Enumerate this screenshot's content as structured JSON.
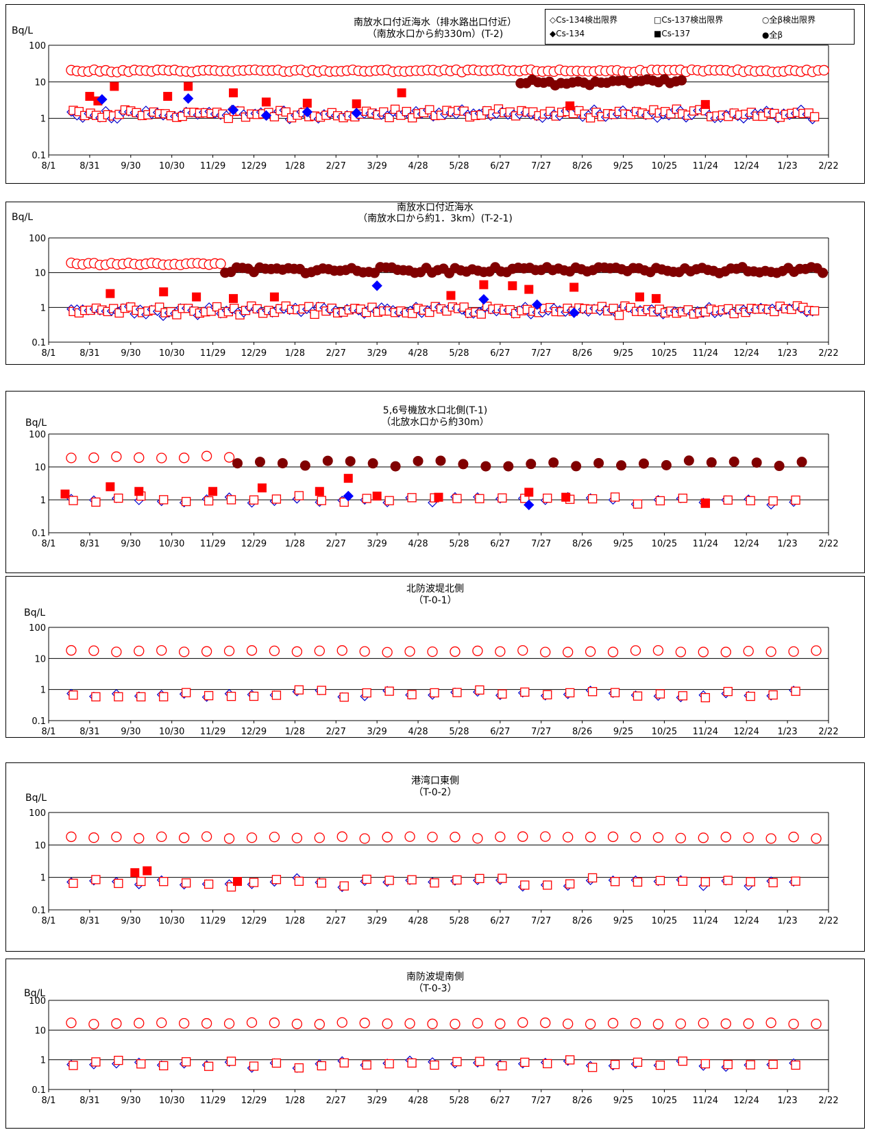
{
  "legend": {
    "items": [
      {
        "label": "◇Cs-134検出限界",
        "marker": "diamond-open",
        "color": "#0000cc"
      },
      {
        "label": "□Cs-137検出限界",
        "marker": "square-open",
        "color": "#ff0000"
      },
      {
        "label": "○全β検出限界",
        "marker": "circle-open",
        "color": "#ff0000"
      },
      {
        "label": "◆Cs-134",
        "marker": "diamond-filled",
        "color": "#0000ff"
      },
      {
        "label": "■Cs-137",
        "marker": "square-filled",
        "color": "#ff0000"
      },
      {
        "label": "●全β",
        "marker": "circle-filled",
        "color": "#800000"
      }
    ]
  },
  "chart_data": [
    {
      "type": "scatter",
      "title": [
        "南放水口付近海水（排水路出口付近）",
        "（南放水口から約330m）(T-2)"
      ],
      "ylabel": "Bq/L",
      "y_scale": "log",
      "ylim": [
        0.1,
        100
      ],
      "y_ticks": [
        "100",
        "10",
        "1",
        "0.1"
      ],
      "x_ticks": [
        "8/1",
        "8/31",
        "9/30",
        "10/30",
        "11/29",
        "12/29",
        "1/28",
        "2/27",
        "3/29",
        "4/28",
        "5/28",
        "6/27",
        "7/27",
        "8/26",
        "9/25",
        "10/25",
        "11/24",
        "12/24",
        "1/23",
        "2/22"
      ],
      "beta_dl_range": [
        20,
        0,
        19
      ],
      "beta_det_range": [
        10,
        11.5,
        15.5
      ],
      "cs_dl_level": 1.3,
      "cs_detected": [
        {
          "series": "Cs-137",
          "x": 1.0,
          "y": 4
        },
        {
          "series": "Cs-137",
          "x": 1.2,
          "y": 3
        },
        {
          "series": "Cs-137",
          "x": 1.6,
          "y": 7.5
        },
        {
          "series": "Cs-137",
          "x": 2.9,
          "y": 4
        },
        {
          "series": "Cs-137",
          "x": 3.4,
          "y": 7.5
        },
        {
          "series": "Cs-137",
          "x": 4.5,
          "y": 5
        },
        {
          "series": "Cs-137",
          "x": 5.3,
          "y": 2.8
        },
        {
          "series": "Cs-137",
          "x": 6.3,
          "y": 2.6
        },
        {
          "series": "Cs-137",
          "x": 7.5,
          "y": 2.5
        },
        {
          "series": "Cs-137",
          "x": 8.6,
          "y": 5
        },
        {
          "series": "Cs-137",
          "x": 12.7,
          "y": 2.2
        },
        {
          "series": "Cs-137",
          "x": 16.0,
          "y": 2.4
        },
        {
          "series": "Cs-134",
          "x": 1.3,
          "y": 3.3
        },
        {
          "series": "Cs-134",
          "x": 3.4,
          "y": 3.5
        },
        {
          "series": "Cs-134",
          "x": 4.5,
          "y": 1.7
        },
        {
          "series": "Cs-134",
          "x": 5.3,
          "y": 1.2
        },
        {
          "series": "Cs-134",
          "x": 6.3,
          "y": 1.5
        },
        {
          "series": "Cs-134",
          "x": 7.5,
          "y": 1.4
        }
      ]
    },
    {
      "type": "scatter",
      "title": [
        "南放水口付近海水",
        "（南放水口から約1．3km）(T-2-1)"
      ],
      "ylabel": "Bq/L",
      "y_scale": "log",
      "ylim": [
        0.1,
        100
      ],
      "y_ticks": [
        "100",
        "10",
        "1",
        "0.1"
      ],
      "x_ticks": [
        "8/1",
        "8/31",
        "9/30",
        "10/30",
        "11/29",
        "12/29",
        "1/28",
        "2/27",
        "3/29",
        "4/28",
        "5/28",
        "6/27",
        "7/27",
        "8/26",
        "9/25",
        "10/25",
        "11/24",
        "12/24",
        "1/23",
        "2/22"
      ],
      "beta_dl_range": [
        18,
        0,
        4.3
      ],
      "beta_det_range": [
        12,
        4.3,
        19
      ],
      "cs_dl_level": 0.8,
      "cs_detected": [
        {
          "series": "Cs-137",
          "x": 1.5,
          "y": 2.5
        },
        {
          "series": "Cs-137",
          "x": 2.8,
          "y": 2.8
        },
        {
          "series": "Cs-137",
          "x": 3.6,
          "y": 2
        },
        {
          "series": "Cs-137",
          "x": 4.5,
          "y": 1.8
        },
        {
          "series": "Cs-137",
          "x": 5.5,
          "y": 2
        },
        {
          "series": "Cs-137",
          "x": 9.8,
          "y": 2.2
        },
        {
          "series": "Cs-137",
          "x": 10.6,
          "y": 4.5
        },
        {
          "series": "Cs-137",
          "x": 11.3,
          "y": 4.2
        },
        {
          "series": "Cs-137",
          "x": 11.7,
          "y": 3.3
        },
        {
          "series": "Cs-137",
          "x": 12.8,
          "y": 3.8
        },
        {
          "series": "Cs-137",
          "x": 14.4,
          "y": 2
        },
        {
          "series": "Cs-137",
          "x": 14.8,
          "y": 1.8
        },
        {
          "series": "Cs-134",
          "x": 8.0,
          "y": 4.2
        },
        {
          "series": "Cs-134",
          "x": 10.6,
          "y": 1.7
        },
        {
          "series": "Cs-134",
          "x": 11.9,
          "y": 1.2
        },
        {
          "series": "Cs-134",
          "x": 12.8,
          "y": 0.7
        }
      ]
    },
    {
      "type": "scatter",
      "title": [
        "5,6号機放水口北側(T-1)",
        "（北放水口から約30m）"
      ],
      "ylabel": "Bq/L",
      "y_scale": "log",
      "ylim": [
        0.1,
        100
      ],
      "y_ticks": [
        "100",
        "10",
        "1",
        "0.1"
      ],
      "x_ticks": [
        "8/1",
        "8/31",
        "9/30",
        "10/30",
        "11/29",
        "12/29",
        "1/28",
        "2/27",
        "3/29",
        "4/28",
        "5/28",
        "6/27",
        "7/27",
        "8/26",
        "9/25",
        "10/25",
        "11/24",
        "12/24",
        "1/23",
        "2/22"
      ],
      "beta_dl_range": [
        20,
        0,
        4.6
      ],
      "beta_det_range": [
        13,
        4.6,
        18.8
      ],
      "cs_dl_level": 1.0,
      "cs_detected": [
        {
          "series": "Cs-137",
          "x": 0.4,
          "y": 1.5
        },
        {
          "series": "Cs-137",
          "x": 1.5,
          "y": 2.5
        },
        {
          "series": "Cs-137",
          "x": 2.2,
          "y": 1.8
        },
        {
          "series": "Cs-137",
          "x": 4.0,
          "y": 1.8
        },
        {
          "series": "Cs-137",
          "x": 5.2,
          "y": 2.3
        },
        {
          "series": "Cs-137",
          "x": 6.6,
          "y": 1.8
        },
        {
          "series": "Cs-137",
          "x": 7.3,
          "y": 4.5
        },
        {
          "series": "Cs-137",
          "x": 8.0,
          "y": 1.3
        },
        {
          "series": "Cs-137",
          "x": 9.5,
          "y": 1.2
        },
        {
          "series": "Cs-137",
          "x": 11.7,
          "y": 1.7
        },
        {
          "series": "Cs-137",
          "x": 12.6,
          "y": 1.2
        },
        {
          "series": "Cs-137",
          "x": 16.0,
          "y": 0.8
        },
        {
          "series": "Cs-134",
          "x": 7.3,
          "y": 1.3
        },
        {
          "series": "Cs-134",
          "x": 11.7,
          "y": 0.7
        }
      ]
    },
    {
      "type": "scatter",
      "title": [
        "北防波堤北側",
        "（T-0-1）"
      ],
      "ylabel": "Bq/L",
      "y_scale": "log",
      "ylim": [
        0.1,
        100
      ],
      "y_ticks": [
        "100",
        "10",
        "1",
        "0.1"
      ],
      "x_ticks": [
        "8/1",
        "8/31",
        "9/30",
        "10/30",
        "11/29",
        "12/29",
        "1/28",
        "2/27",
        "3/29",
        "4/28",
        "5/28",
        "6/27",
        "7/27",
        "8/26",
        "9/25",
        "10/25",
        "11/24",
        "12/24",
        "1/23",
        "2/22"
      ],
      "beta_dl_range": [
        17,
        0,
        19
      ],
      "beta_det_range": [],
      "cs_dl_level": 0.7,
      "cs_detected": []
    },
    {
      "type": "scatter",
      "title": [
        "港湾口東側",
        "（T-0-2）"
      ],
      "ylabel": "Bq/L",
      "y_scale": "log",
      "ylim": [
        0.1,
        100
      ],
      "y_ticks": [
        "100",
        "10",
        "1",
        "0.1"
      ],
      "x_ticks": [
        "8/1",
        "8/31",
        "9/30",
        "10/30",
        "11/29",
        "12/29",
        "1/28",
        "2/27",
        "3/29",
        "4/28",
        "5/28",
        "6/27",
        "7/27",
        "8/26",
        "9/25",
        "10/25",
        "11/24",
        "12/24",
        "1/23",
        "2/22"
      ],
      "beta_dl_range": [
        17,
        0,
        19
      ],
      "beta_det_range": [],
      "cs_dl_level": 0.7,
      "cs_detected": [
        {
          "series": "Cs-137",
          "x": 2.1,
          "y": 1.4
        },
        {
          "series": "Cs-137",
          "x": 2.4,
          "y": 1.6
        },
        {
          "series": "Cs-137",
          "x": 4.6,
          "y": 0.75
        }
      ]
    },
    {
      "type": "scatter",
      "title": [
        "南防波堤南側",
        "（T-0-3）"
      ],
      "ylabel": "Bq/L",
      "y_scale": "log",
      "ylim": [
        0.1,
        100
      ],
      "y_ticks": [
        "100",
        "10",
        "1",
        "0.1"
      ],
      "x_ticks": [
        "8/1",
        "8/31",
        "9/30",
        "10/30",
        "11/29",
        "12/29",
        "1/28",
        "2/27",
        "3/29",
        "4/28",
        "5/28",
        "6/27",
        "7/27",
        "8/26",
        "9/25",
        "10/25",
        "11/24",
        "12/24",
        "1/23",
        "2/22"
      ],
      "beta_dl_range": [
        17,
        0,
        19
      ],
      "beta_det_range": [],
      "cs_dl_level": 0.7,
      "cs_detected": []
    }
  ]
}
